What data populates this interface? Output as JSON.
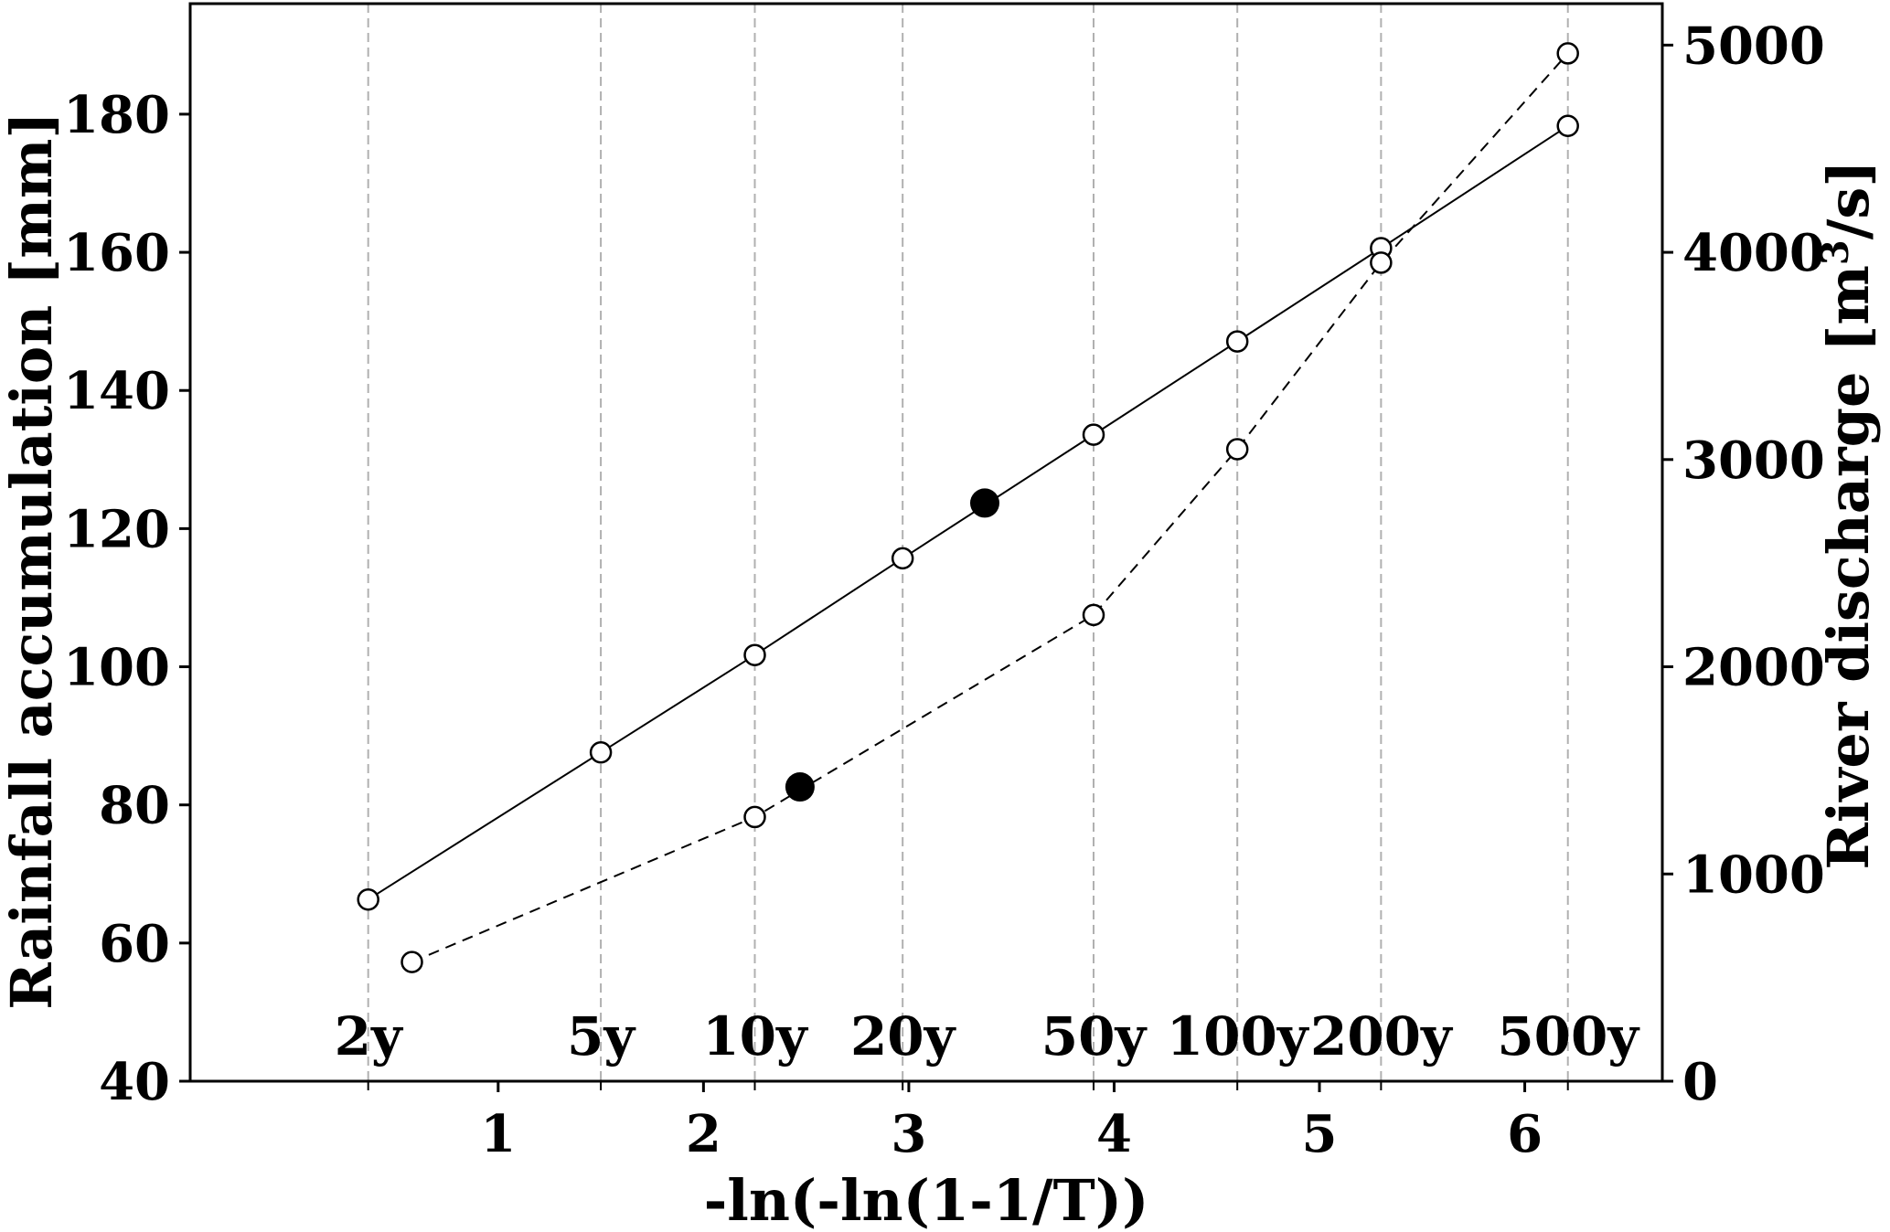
{
  "chart_data": {
    "type": "line",
    "title": "",
    "xlabel": "-ln(-ln(1-1/T))",
    "ylabel_left": "Rainfall accumulation [mm]",
    "ylabel_right": {
      "prefix": "River discharge [m",
      "superscript": "3",
      "suffix": "/s]"
    },
    "xlim": [
      -0.5,
      6.67
    ],
    "ylim_left": [
      40,
      196
    ],
    "ylim_right": [
      0,
      5200
    ],
    "x_ticks": [
      1,
      2,
      3,
      4,
      5,
      6
    ],
    "y_ticks_left": [
      40,
      60,
      80,
      100,
      120,
      140,
      160,
      180
    ],
    "y_ticks_right": [
      0,
      1000,
      2000,
      3000,
      4000,
      5000
    ],
    "grid": "vertical dashed lines at return periods",
    "return_periods": [
      {
        "label": "2y",
        "x": 0.367
      },
      {
        "label": "5y",
        "x": 1.5
      },
      {
        "label": "10y",
        "x": 2.25
      },
      {
        "label": "20y",
        "x": 2.97
      },
      {
        "label": "50y",
        "x": 3.9
      },
      {
        "label": "100y",
        "x": 4.6
      },
      {
        "label": "200y",
        "x": 5.3
      },
      {
        "label": "500y",
        "x": 6.21
      }
    ],
    "series": [
      {
        "axis": "left",
        "line_style": "solid",
        "points": [
          {
            "x": 0.367,
            "y": 66.3
          },
          {
            "x": 1.5,
            "y": 87.6
          },
          {
            "x": 2.25,
            "y": 101.7
          },
          {
            "x": 2.97,
            "y": 115.7
          },
          {
            "x": 3.9,
            "y": 133.6
          },
          {
            "x": 4.6,
            "y": 147.1
          },
          {
            "x": 5.3,
            "y": 160.6
          },
          {
            "x": 6.21,
            "y": 178.3
          }
        ],
        "highlight": {
          "x": 3.37,
          "y": 123.7
        }
      },
      {
        "axis": "right",
        "line_style": "dashed",
        "points": [
          {
            "x": 0.58,
            "y": 575
          },
          {
            "x": 2.25,
            "y": 1275
          },
          {
            "x": 3.9,
            "y": 2250
          },
          {
            "x": 4.6,
            "y": 3050
          },
          {
            "x": 5.3,
            "y": 3950
          },
          {
            "x": 6.21,
            "y": 4960
          }
        ],
        "highlight": {
          "x": 2.47,
          "y": 1420
        }
      }
    ],
    "colors": {
      "line": "#000000",
      "grid": "#b0b0b0",
      "open_marker_fill": "#ffffff",
      "highlight_fill": "#000000"
    }
  }
}
